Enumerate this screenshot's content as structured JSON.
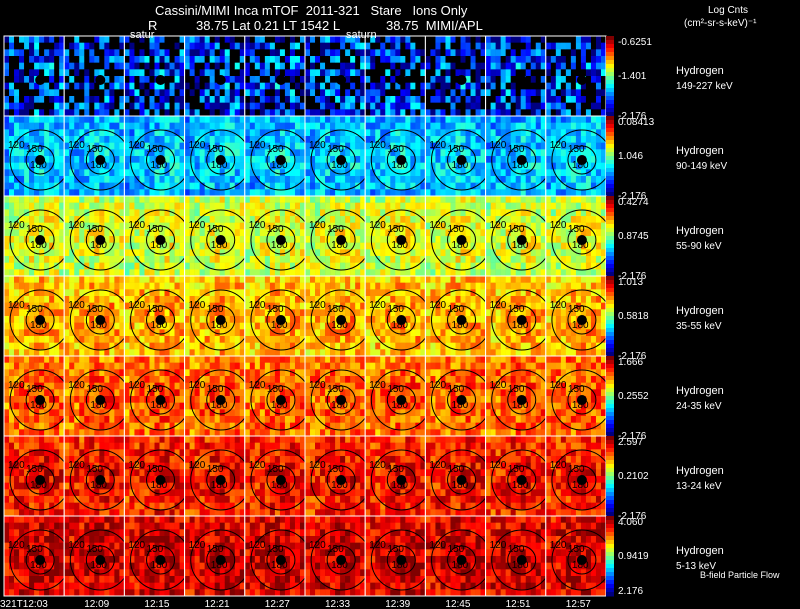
{
  "header": {
    "title": "Cassini/MIMI Inca mTOF  2011-321   Stare   Ions Only",
    "line2_r": "R",
    "line2_vals": "38.75 Lat 0.21 LT 1542 L",
    "line2_l": "38.75  MIMI/APL",
    "units_line1": "Log Cnts",
    "units_line2": "(cm²-sr-s-keV)⁻¹"
  },
  "frame_labels": [
    "satur",
    "saturn"
  ],
  "time_labels": [
    "321T12:03",
    "12:09",
    "12:15",
    "12:21",
    "12:27",
    "12:33",
    "12:39",
    "12:45",
    "12:51",
    "12:57"
  ],
  "contour_labels": [
    "120",
    "150",
    "180"
  ],
  "control_label": "B-field Particle Flow",
  "colors": {
    "background": "#000000",
    "contour": "#000000",
    "grid": "#ffffff"
  },
  "chart_data": {
    "type": "heatmap",
    "description_type": "image-grid",
    "rows": [
      {
        "species": "Hydrogen",
        "energy": "149-227 keV",
        "scale_max": "-0.6251",
        "scale_mid": "-1.401",
        "scale_min": "-2.176",
        "level": 0.12
      },
      {
        "species": "Hydrogen",
        "energy": "90-149 keV",
        "scale_max": "0.08413",
        "scale_mid": "1.046",
        "scale_min": "-2.176",
        "level": 0.28
      },
      {
        "species": "Hydrogen",
        "energy": "55-90 keV",
        "scale_max": "0.4274",
        "scale_mid": "0.8745",
        "scale_min": "-2.176",
        "level": 0.55
      },
      {
        "species": "Hydrogen",
        "energy": "35-55 keV",
        "scale_max": "1.013",
        "scale_mid": "0.5818",
        "scale_min": "-2.176",
        "level": 0.66
      },
      {
        "species": "Hydrogen",
        "energy": "24-35 keV",
        "scale_max": "1.666",
        "scale_mid": "0.2552",
        "scale_min": "-2.176",
        "level": 0.74
      },
      {
        "species": "Hydrogen",
        "energy": "13-24 keV",
        "scale_max": "2.597",
        "scale_mid": "0.2102",
        "scale_min": "-2.176",
        "level": 0.82
      },
      {
        "species": "Hydrogen",
        "energy": "5-13 keV",
        "scale_max": "4.060",
        "scale_mid": "0.9419",
        "scale_min": "2.176",
        "level": 0.88
      }
    ],
    "columns": 10
  }
}
